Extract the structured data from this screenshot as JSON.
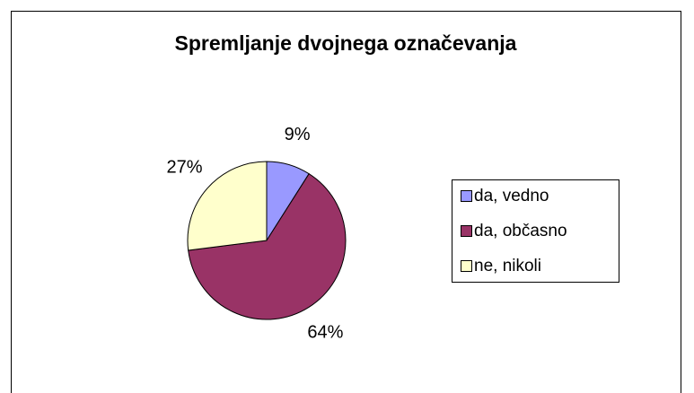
{
  "chart_data": {
    "type": "pie",
    "title": "Spremljanje dvojnega označevanja",
    "categories": [
      "da, vedno",
      "da, občasno",
      "ne, nikoli"
    ],
    "values": [
      9,
      64,
      27
    ],
    "value_labels": [
      "9%",
      "64%",
      "27%"
    ],
    "colors": [
      "#9999ff",
      "#993366",
      "#ffffcc"
    ],
    "legend": "right"
  }
}
